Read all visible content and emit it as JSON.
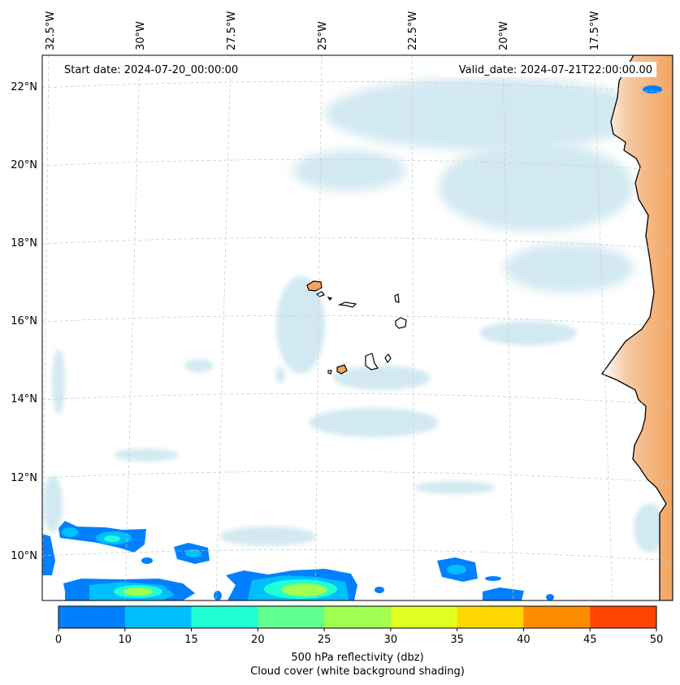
{
  "header": {
    "start_date": "Start date: 2024-07-20_00:00:00",
    "valid_date": "Valid_date: 2024-07-21T22:00:00.00"
  },
  "axes": {
    "lon_labels": [
      "32.5°W",
      "30°W",
      "27.5°W",
      "25°W",
      "22.5°W",
      "20°W",
      "17.5°W"
    ],
    "lat_labels": [
      "22°N",
      "20°N",
      "18°N",
      "16°N",
      "14°N",
      "12°N",
      "10°N"
    ]
  },
  "colorbar": {
    "ticks": [
      "0",
      "10",
      "15",
      "20",
      "25",
      "30",
      "35",
      "40",
      "45",
      "50"
    ],
    "colors": [
      "#0080ff",
      "#00bfff",
      "#20ffd4",
      "#60ff90",
      "#a0ff50",
      "#dfff20",
      "#ffd700",
      "#ff8c00",
      "#ff4500"
    ],
    "label_line1": "500 hPa reflectivity (dbz)",
    "label_line2": "Cloud cover (white background shading)"
  },
  "map_colors": {
    "cloud": "#add8e6",
    "land": "#f4a460",
    "coast": "#000000",
    "grid": "#c8c8c8"
  }
}
